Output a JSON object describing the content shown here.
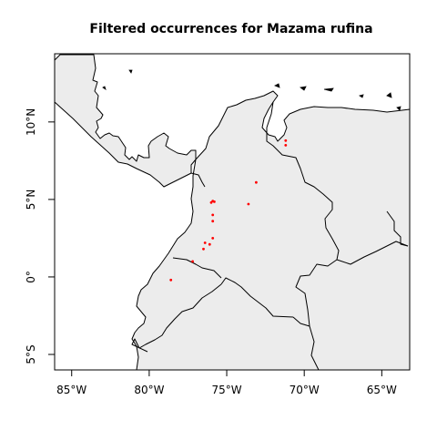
{
  "title": "Filtered occurrences for Mazama rufina",
  "colors": {
    "land": "#ececec",
    "water": "#ffffff",
    "border": "#000000",
    "point": "#ff0000",
    "frame": "#000000"
  },
  "axes": {
    "x_ticks": [
      {
        "value": -85,
        "label": "85°W"
      },
      {
        "value": -80,
        "label": "80°W"
      },
      {
        "value": -75,
        "label": "75°W"
      },
      {
        "value": -70,
        "label": "70°W"
      },
      {
        "value": -65,
        "label": "65°W"
      }
    ],
    "y_ticks": [
      {
        "value": 10,
        "label": "10°N"
      },
      {
        "value": 5,
        "label": "5°N"
      },
      {
        "value": 0,
        "label": "0°"
      },
      {
        "value": -5,
        "label": "5°S"
      }
    ],
    "xlim": [
      -86.1,
      -63.2
    ],
    "ylim": [
      -6.0,
      14.4
    ]
  },
  "chart_data": {
    "type": "scatter",
    "title": "Filtered occurrences for Mazama rufina",
    "xlabel": "",
    "ylabel": "",
    "xlim": [
      -86.1,
      -63.2
    ],
    "ylim": [
      -6.0,
      14.4
    ],
    "grid": false,
    "series": [
      {
        "points": [
          {
            "x": -71.2,
            "y": 8.8
          },
          {
            "x": -71.2,
            "y": 8.5
          },
          {
            "x": -73.1,
            "y": 6.1
          },
          {
            "x": -75.9,
            "y": 4.9
          },
          {
            "x": -76.0,
            "y": 4.8
          },
          {
            "x": -75.8,
            "y": 4.85
          },
          {
            "x": -73.6,
            "y": 4.7
          },
          {
            "x": -75.9,
            "y": 4.0
          },
          {
            "x": -75.9,
            "y": 3.6
          },
          {
            "x": -75.9,
            "y": 2.5
          },
          {
            "x": -76.1,
            "y": 2.1
          },
          {
            "x": -76.4,
            "y": 2.2
          },
          {
            "x": -76.5,
            "y": 1.8
          },
          {
            "x": -77.2,
            "y": 1.0
          },
          {
            "x": -78.6,
            "y": -0.2
          }
        ]
      }
    ]
  }
}
